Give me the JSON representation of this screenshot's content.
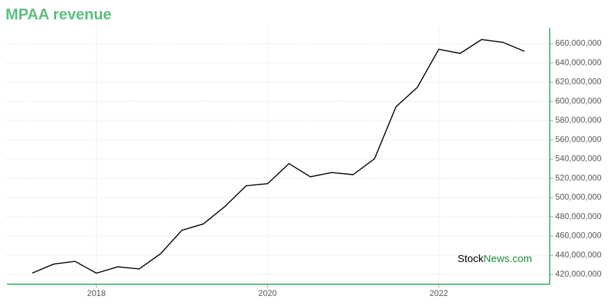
{
  "chart_data": {
    "type": "line",
    "title": "MPAA revenue",
    "x": [
      2017.25,
      2017.5,
      2017.75,
      2018,
      2018.25,
      2018.5,
      2018.75,
      2019,
      2019.25,
      2019.5,
      2019.75,
      2020,
      2020.25,
      2020.5,
      2020.75,
      2021,
      2021.25,
      2021.5,
      2021.75,
      2022,
      2022.25,
      2022.5,
      2022.75,
      2023
    ],
    "series": [
      {
        "color": "#000000",
        "values": [
          421400000,
          430800000,
          433700000,
          421400000,
          428000000,
          425800000,
          441600000,
          466000000,
          472600000,
          490600000,
          512300000,
          514400000,
          535300000,
          521600000,
          526000000,
          523800000,
          540400000,
          594400000,
          614600000,
          654200000,
          649900000,
          664300000,
          661400000,
          652100000
        ]
      }
    ],
    "xlim": [
      2016.955,
      2023.296
    ],
    "xticks": [
      2018,
      2020,
      2022
    ],
    "ylim": [
      409900000,
      676600000
    ],
    "yticks": [
      {
        "value": 420000000,
        "label": "420,000,000"
      },
      {
        "value": 440000000,
        "label": "440,000,000"
      },
      {
        "value": 460000000,
        "label": "460,000,000"
      },
      {
        "value": 480000000,
        "label": "480,000,000"
      },
      {
        "value": 500000000,
        "label": "500,000,000"
      },
      {
        "value": 520000000,
        "label": "520,000,000"
      },
      {
        "value": 540000000,
        "label": "540,000,000"
      },
      {
        "value": 560000000,
        "label": "560,000,000"
      },
      {
        "value": 580000000,
        "label": "580,000,000"
      },
      {
        "value": 600000000,
        "label": "600,000,000"
      },
      {
        "value": 620000000,
        "label": "620,000,000"
      },
      {
        "value": 640000000,
        "label": "640,000,000"
      },
      {
        "value": 660000000,
        "label": "660,000,000"
      }
    ],
    "grid": true,
    "axis_color": "#5bbf7e",
    "watermark": {
      "prefix": "Stock",
      "suffix": "News.com"
    }
  }
}
